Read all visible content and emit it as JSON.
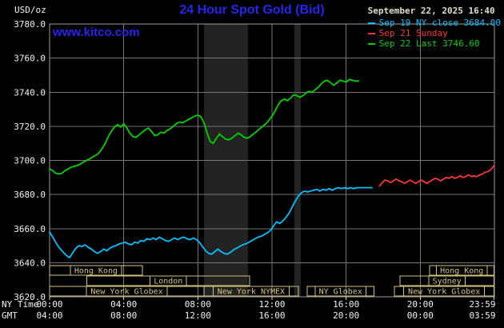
{
  "header": {
    "unit_label": "USD/oz",
    "title": "24 Hour Spot Gold (Bid)",
    "datetime": "September 22, 2025 16:40",
    "watermark": "www.kitco.com"
  },
  "colors": {
    "title_blue": "#2525f2",
    "datetime_text": "#e2ddc8"
  },
  "legend": [
    {
      "label": "Sep 19 NY close 3684.00",
      "color": "#00c0ff"
    },
    {
      "label": "Sep 21 Sunday",
      "color": "#ff3434"
    },
    {
      "label": "Sep 22 Last 3746.60",
      "color": "#00d400"
    }
  ],
  "chart_data": {
    "type": "line",
    "title": "24 Hour Spot Gold (Bid)",
    "ylabel": "USD/oz",
    "ylim": [
      3620,
      3780
    ],
    "y_ticks": [
      3620,
      3640,
      3660,
      3680,
      3700,
      3720,
      3740,
      3760,
      3780
    ],
    "x_tick_hours": [
      0,
      4,
      8,
      12,
      16,
      20,
      23.983
    ],
    "x_axis_rows": [
      {
        "name": "NY Time",
        "labels": [
          "00:00",
          "04:00",
          "08:00",
          "12:00",
          "16:00",
          "20:00",
          "23:59"
        ]
      },
      {
        "name": "GMT",
        "labels": [
          "04:00",
          "08:00",
          "12:00",
          "16:00",
          "20:00",
          "00:00",
          "03:59"
        ]
      }
    ],
    "grid": true,
    "legend_position": "top-right",
    "colors": {
      "grid": "#767676",
      "border": "#9c9c9c",
      "band": "#232323",
      "session": "#d2c47a",
      "axis_text": "#f2f2f2",
      "tick": "#cccccc"
    },
    "bands": [
      {
        "from": 8.33,
        "to": 10.7
      },
      {
        "from": 13.2,
        "to": 13.55
      }
    ],
    "sessions": [
      {
        "row": 0,
        "label": "Hong Kong",
        "from": 0,
        "to": 5.0
      },
      {
        "row": 0,
        "label": "Hong Kong",
        "from": 20.5,
        "to": 23.98
      },
      {
        "row": 1,
        "label": "London",
        "from": 2.0,
        "to": 10.8
      },
      {
        "row": 1,
        "label": "Sydney",
        "from": 18.9,
        "to": 23.98
      },
      {
        "row": 2,
        "label": "New York Globex",
        "from": 0,
        "to": 8.33
      },
      {
        "row": 2,
        "label": "New York NYMEX",
        "from": 8.33,
        "to": 13.42
      },
      {
        "row": 2,
        "label": "NY Globex",
        "from": 13.9,
        "to": 17.5
      },
      {
        "row": 2,
        "label": "New York Globex",
        "from": 18.6,
        "to": 23.98
      }
    ],
    "series": [
      {
        "id": "sep19-ny-close",
        "name": "Sep 19 NY close 3684.00",
        "color": "#00c0ff",
        "points": [
          [
            0.0,
            3658
          ],
          [
            0.17,
            3655
          ],
          [
            0.33,
            3652
          ],
          [
            0.5,
            3649
          ],
          [
            0.67,
            3647
          ],
          [
            0.83,
            3645
          ],
          [
            1.0,
            3643.5
          ],
          [
            1.08,
            3643
          ],
          [
            1.25,
            3646
          ],
          [
            1.42,
            3648.5
          ],
          [
            1.58,
            3650
          ],
          [
            1.75,
            3649.5
          ],
          [
            1.92,
            3650.5
          ],
          [
            2.08,
            3649
          ],
          [
            2.25,
            3648
          ],
          [
            2.42,
            3646.5
          ],
          [
            2.58,
            3645.5
          ],
          [
            2.75,
            3646.5
          ],
          [
            2.92,
            3648
          ],
          [
            3.08,
            3647
          ],
          [
            3.25,
            3648.5
          ],
          [
            3.42,
            3649.5
          ],
          [
            3.58,
            3650
          ],
          [
            3.75,
            3651
          ],
          [
            3.92,
            3651.5
          ],
          [
            4.08,
            3652
          ],
          [
            4.25,
            3651
          ],
          [
            4.42,
            3650.5
          ],
          [
            4.58,
            3652
          ],
          [
            4.75,
            3651.5
          ],
          [
            4.92,
            3653
          ],
          [
            5.08,
            3652.5
          ],
          [
            5.25,
            3654
          ],
          [
            5.42,
            3653.5
          ],
          [
            5.58,
            3654.5
          ],
          [
            5.75,
            3653.5
          ],
          [
            5.92,
            3655
          ],
          [
            6.08,
            3654
          ],
          [
            6.25,
            3653
          ],
          [
            6.42,
            3652.5
          ],
          [
            6.58,
            3653.5
          ],
          [
            6.75,
            3654.5
          ],
          [
            6.92,
            3653.5
          ],
          [
            7.08,
            3654.5
          ],
          [
            7.25,
            3655
          ],
          [
            7.42,
            3654
          ],
          [
            7.58,
            3653.5
          ],
          [
            7.75,
            3654.5
          ],
          [
            7.92,
            3653.5
          ],
          [
            8.08,
            3652
          ],
          [
            8.25,
            3649.5
          ],
          [
            8.42,
            3647
          ],
          [
            8.58,
            3645.5
          ],
          [
            8.75,
            3645
          ],
          [
            8.92,
            3646.5
          ],
          [
            9.08,
            3648
          ],
          [
            9.25,
            3646.5
          ],
          [
            9.42,
            3645.5
          ],
          [
            9.58,
            3645
          ],
          [
            9.75,
            3646
          ],
          [
            9.92,
            3647.5
          ],
          [
            10.08,
            3648.5
          ],
          [
            10.25,
            3649.5
          ],
          [
            10.42,
            3650.5
          ],
          [
            10.58,
            3651
          ],
          [
            10.75,
            3652
          ],
          [
            10.92,
            3653
          ],
          [
            11.08,
            3654
          ],
          [
            11.25,
            3655
          ],
          [
            11.42,
            3655.5
          ],
          [
            11.58,
            3656.5
          ],
          [
            11.75,
            3657.5
          ],
          [
            11.92,
            3659
          ],
          [
            12.08,
            3661.5
          ],
          [
            12.25,
            3664
          ],
          [
            12.42,
            3663
          ],
          [
            12.58,
            3664.5
          ],
          [
            12.75,
            3666.5
          ],
          [
            12.92,
            3669
          ],
          [
            13.08,
            3672.5
          ],
          [
            13.25,
            3676
          ],
          [
            13.42,
            3679
          ],
          [
            13.58,
            3681
          ],
          [
            13.75,
            3682
          ],
          [
            13.92,
            3681.5
          ],
          [
            14.08,
            3682
          ],
          [
            14.25,
            3682.5
          ],
          [
            14.42,
            3683
          ],
          [
            14.58,
            3682
          ],
          [
            14.75,
            3683
          ],
          [
            14.92,
            3682.5
          ],
          [
            15.08,
            3683.5
          ],
          [
            15.25,
            3682.5
          ],
          [
            15.42,
            3683.5
          ],
          [
            15.58,
            3684
          ],
          [
            15.75,
            3683.5
          ],
          [
            15.92,
            3684
          ],
          [
            16.08,
            3683.5
          ],
          [
            16.25,
            3684
          ],
          [
            16.42,
            3683.5
          ],
          [
            16.58,
            3684
          ],
          [
            16.75,
            3684
          ],
          [
            17.0,
            3684
          ],
          [
            17.25,
            3684
          ],
          [
            17.4,
            3684
          ]
        ]
      },
      {
        "id": "sep21-sunday",
        "name": "Sep 21 Sunday",
        "color": "#ff3434",
        "points": [
          [
            17.8,
            3685
          ],
          [
            17.95,
            3687
          ],
          [
            18.1,
            3688.5
          ],
          [
            18.25,
            3688
          ],
          [
            18.4,
            3687
          ],
          [
            18.55,
            3688
          ],
          [
            18.7,
            3689
          ],
          [
            18.85,
            3688
          ],
          [
            19.0,
            3687.5
          ],
          [
            19.15,
            3686.5
          ],
          [
            19.3,
            3687.5
          ],
          [
            19.45,
            3688.5
          ],
          [
            19.6,
            3687.5
          ],
          [
            19.75,
            3686.5
          ],
          [
            19.9,
            3687.5
          ],
          [
            20.05,
            3688.5
          ],
          [
            20.2,
            3687.5
          ],
          [
            20.35,
            3686.5
          ],
          [
            20.5,
            3687.5
          ],
          [
            20.65,
            3688.5
          ],
          [
            20.8,
            3689.5
          ],
          [
            20.95,
            3689
          ],
          [
            21.1,
            3688
          ],
          [
            21.25,
            3689
          ],
          [
            21.4,
            3690
          ],
          [
            21.55,
            3689.5
          ],
          [
            21.7,
            3690.5
          ],
          [
            21.85,
            3689.5
          ],
          [
            22.0,
            3690
          ],
          [
            22.15,
            3691
          ],
          [
            22.3,
            3690
          ],
          [
            22.45,
            3690.5
          ],
          [
            22.6,
            3691.5
          ],
          [
            22.75,
            3690.5
          ],
          [
            22.9,
            3691
          ],
          [
            23.05,
            3690.5
          ],
          [
            23.2,
            3691.5
          ],
          [
            23.35,
            3692
          ],
          [
            23.5,
            3693
          ],
          [
            23.65,
            3693.5
          ],
          [
            23.8,
            3694.5
          ],
          [
            23.98,
            3697
          ]
        ]
      },
      {
        "id": "sep22-last",
        "name": "Sep 22 Last 3746.60",
        "color": "#00d400",
        "points": [
          [
            0.0,
            3695
          ],
          [
            0.17,
            3694
          ],
          [
            0.33,
            3692.5
          ],
          [
            0.5,
            3692
          ],
          [
            0.67,
            3692.5
          ],
          [
            0.83,
            3694
          ],
          [
            1.0,
            3695
          ],
          [
            1.17,
            3696
          ],
          [
            1.33,
            3696.5
          ],
          [
            1.5,
            3697
          ],
          [
            1.67,
            3698
          ],
          [
            1.83,
            3699
          ],
          [
            2.0,
            3700
          ],
          [
            2.17,
            3701
          ],
          [
            2.33,
            3702
          ],
          [
            2.5,
            3703
          ],
          [
            2.67,
            3704.5
          ],
          [
            2.83,
            3707
          ],
          [
            3.0,
            3710
          ],
          [
            3.17,
            3714
          ],
          [
            3.33,
            3717
          ],
          [
            3.5,
            3719.5
          ],
          [
            3.67,
            3721
          ],
          [
            3.83,
            3719.5
          ],
          [
            4.0,
            3721.5
          ],
          [
            4.17,
            3719
          ],
          [
            4.33,
            3716
          ],
          [
            4.5,
            3714
          ],
          [
            4.67,
            3713.5
          ],
          [
            4.83,
            3715
          ],
          [
            5.0,
            3716.5
          ],
          [
            5.17,
            3718
          ],
          [
            5.33,
            3719
          ],
          [
            5.5,
            3717
          ],
          [
            5.67,
            3714.5
          ],
          [
            5.83,
            3715
          ],
          [
            6.0,
            3716.5
          ],
          [
            6.17,
            3716
          ],
          [
            6.33,
            3717.5
          ],
          [
            6.5,
            3718.5
          ],
          [
            6.67,
            3720
          ],
          [
            6.83,
            3721.5
          ],
          [
            7.0,
            3722.5
          ],
          [
            7.17,
            3722
          ],
          [
            7.33,
            3723
          ],
          [
            7.5,
            3724
          ],
          [
            7.67,
            3725
          ],
          [
            7.83,
            3726
          ],
          [
            8.0,
            3726.5
          ],
          [
            8.17,
            3725.5
          ],
          [
            8.33,
            3722
          ],
          [
            8.5,
            3716
          ],
          [
            8.67,
            3711
          ],
          [
            8.83,
            3710
          ],
          [
            9.0,
            3713
          ],
          [
            9.17,
            3715.5
          ],
          [
            9.33,
            3714
          ],
          [
            9.5,
            3712.5
          ],
          [
            9.67,
            3712
          ],
          [
            9.83,
            3713
          ],
          [
            10.0,
            3714.5
          ],
          [
            10.17,
            3716
          ],
          [
            10.33,
            3715
          ],
          [
            10.5,
            3713.5
          ],
          [
            10.67,
            3713
          ],
          [
            10.83,
            3714
          ],
          [
            11.0,
            3715.5
          ],
          [
            11.17,
            3717
          ],
          [
            11.33,
            3718.5
          ],
          [
            11.5,
            3720
          ],
          [
            11.67,
            3721.5
          ],
          [
            11.83,
            3723.5
          ],
          [
            12.0,
            3726
          ],
          [
            12.17,
            3729
          ],
          [
            12.33,
            3732.5
          ],
          [
            12.5,
            3735
          ],
          [
            12.67,
            3736
          ],
          [
            12.83,
            3735
          ],
          [
            13.0,
            3736.5
          ],
          [
            13.17,
            3738.5
          ],
          [
            13.33,
            3738
          ],
          [
            13.5,
            3737
          ],
          [
            13.67,
            3738
          ],
          [
            13.83,
            3739.5
          ],
          [
            14.0,
            3740.5
          ],
          [
            14.17,
            3740
          ],
          [
            14.33,
            3741.5
          ],
          [
            14.5,
            3743
          ],
          [
            14.67,
            3745
          ],
          [
            14.83,
            3746.5
          ],
          [
            15.0,
            3747
          ],
          [
            15.17,
            3745.5
          ],
          [
            15.33,
            3744
          ],
          [
            15.5,
            3745.5
          ],
          [
            15.67,
            3747
          ],
          [
            15.83,
            3746.5
          ],
          [
            16.0,
            3746
          ],
          [
            16.17,
            3747.5
          ],
          [
            16.33,
            3747
          ],
          [
            16.5,
            3746.5
          ],
          [
            16.67,
            3746.6
          ]
        ]
      }
    ]
  }
}
